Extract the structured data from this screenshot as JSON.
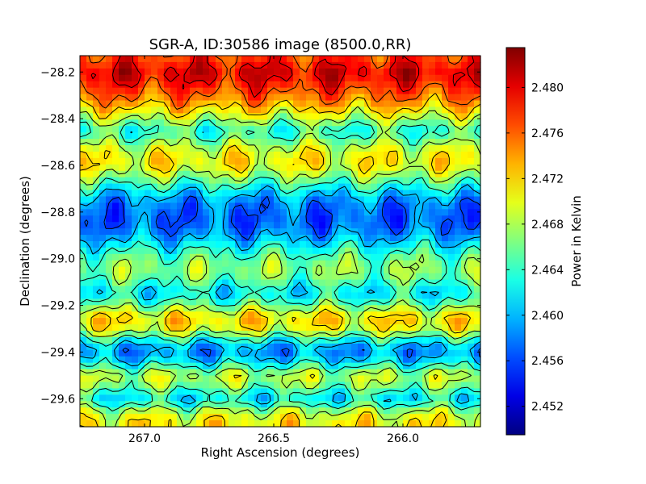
{
  "chart_data": {
    "type": "heatmap",
    "title": "SGR-A, ID:30586 image (8500.0,RR)",
    "xlabel": "Right Ascension (degrees)",
    "ylabel": "Declination (degrees)",
    "colorbar_label": "Power in Kelvin",
    "colormap": "jet",
    "xlim": [
      267.25,
      265.7
    ],
    "ylim": [
      -29.72,
      -28.13
    ],
    "clim": [
      2.4495,
      2.4835
    ],
    "x_ticks": [
      267.0,
      266.5,
      266.0
    ],
    "x_tick_labels": [
      "267.0",
      "266.5",
      "266.0"
    ],
    "y_ticks": [
      -28.2,
      -28.4,
      -28.6,
      -28.8,
      -29.0,
      -29.2,
      -29.4,
      -29.6
    ],
    "y_tick_labels": [
      "−28.2",
      "−28.4",
      "−28.6",
      "−28.8",
      "−29.0",
      "−29.2",
      "−29.4",
      "−29.6"
    ],
    "colorbar_ticks": [
      2.452,
      2.456,
      2.46,
      2.464,
      2.468,
      2.472,
      2.476,
      2.48
    ],
    "colorbar_tick_labels": [
      "2.452",
      "2.456",
      "2.460",
      "2.464",
      "2.468",
      "2.472",
      "2.476",
      "2.480"
    ],
    "dec_profile": {
      "dec": [
        -28.15,
        -28.2,
        -28.27,
        -28.33,
        -28.4,
        -28.45,
        -28.5,
        -28.55,
        -28.6,
        -28.65,
        -28.7,
        -28.75,
        -28.8,
        -28.85,
        -28.9,
        -28.95,
        -29.0,
        -29.05,
        -29.1,
        -29.15,
        -29.2,
        -29.25,
        -29.3,
        -29.35,
        -29.4,
        -29.45,
        -29.5,
        -29.55,
        -29.6,
        -29.65,
        -29.7
      ],
      "power": [
        2.4775,
        2.4808,
        2.4775,
        2.4742,
        2.4685,
        2.463,
        2.467,
        2.4705,
        2.471,
        2.467,
        2.4625,
        2.4585,
        2.4572,
        2.4568,
        2.459,
        2.4625,
        2.4658,
        2.4675,
        2.4648,
        2.4612,
        2.4662,
        2.4718,
        2.4708,
        2.4625,
        2.4578,
        2.4625,
        2.4688,
        2.4665,
        2.4605,
        2.4682,
        2.4712
      ]
    },
    "levels": [
      2.452,
      2.456,
      2.46,
      2.464,
      2.468,
      2.472,
      2.476,
      2.48
    ],
    "grid": false
  }
}
